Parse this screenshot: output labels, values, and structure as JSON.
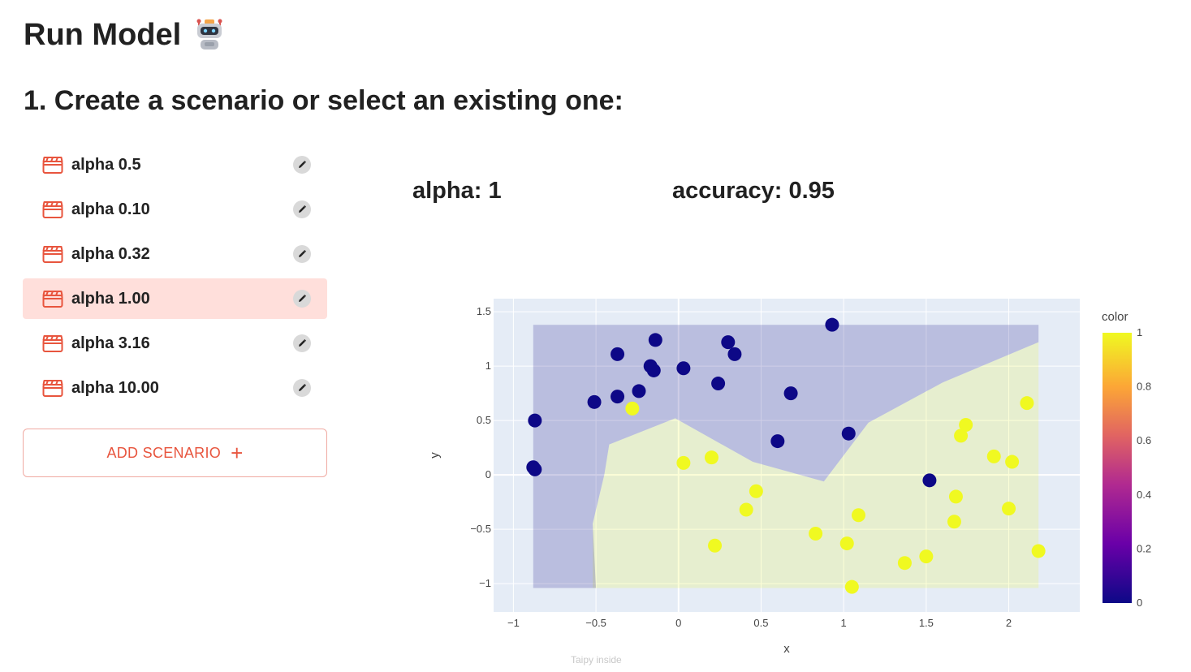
{
  "page": {
    "title": "Run Model",
    "title_icon": "robot-icon",
    "section_heading": "1. Create a scenario or select an existing one:",
    "footer_note": "Taipy inside"
  },
  "scenarios": {
    "items": [
      {
        "label": "alpha 0.5",
        "selected": false
      },
      {
        "label": "alpha 0.10",
        "selected": false
      },
      {
        "label": "alpha 0.32",
        "selected": false
      },
      {
        "label": "alpha 1.00",
        "selected": true
      },
      {
        "label": "alpha 3.16",
        "selected": false
      },
      {
        "label": "alpha 10.00",
        "selected": false
      }
    ],
    "item_icon": "clapperboard-icon",
    "edit_icon": "pencil-icon",
    "add_button_label": "ADD SCENARIO",
    "add_button_icon": "plus-icon"
  },
  "metrics": {
    "alpha_label": "alpha: 1",
    "accuracy_label": "accuracy: 0.95"
  },
  "colors": {
    "accent": "#e8553e",
    "selected_bg": "#ffdfdb",
    "class0": "#0d0887",
    "class1": "#f0f921",
    "plot_bg": "#e5ecf6"
  },
  "chart_data": {
    "type": "scatter",
    "xlabel": "x",
    "ylabel": "y",
    "xlim": [
      -1.12,
      2.43
    ],
    "ylim": [
      -1.26,
      1.62
    ],
    "xticks": [
      -1,
      -0.5,
      0,
      0.5,
      1,
      1.5,
      2
    ],
    "xtick_labels": [
      "−1",
      "−0.5",
      "0",
      "0.5",
      "1",
      "1.5",
      "2"
    ],
    "yticks": [
      -1,
      -0.5,
      0,
      0.5,
      1,
      1.5
    ],
    "ytick_labels": [
      "−1",
      "−0.5",
      "0",
      "0.5",
      "1",
      "1.5"
    ],
    "colorbar": {
      "title": "color",
      "ticks": [
        0,
        0.2,
        0.4,
        0.6,
        0.8,
        1
      ],
      "tick_labels": [
        "0",
        "0.2",
        "0.4",
        "0.6",
        "0.8",
        "1"
      ]
    },
    "decision_region_class0": [
      [
        -0.88,
        1.38
      ],
      [
        2.18,
        1.38
      ],
      [
        2.18,
        1.22
      ],
      [
        1.6,
        0.85
      ],
      [
        1.15,
        0.48
      ],
      [
        0.88,
        -0.06
      ],
      [
        0.45,
        0.12
      ],
      [
        -0.02,
        0.52
      ],
      [
        -0.42,
        0.28
      ],
      [
        -0.45,
        0.0
      ],
      [
        -0.52,
        -0.45
      ],
      [
        -0.5,
        -1.04
      ],
      [
        -0.88,
        -1.04
      ]
    ],
    "decision_region_class1": [
      [
        -0.52,
        -1.04
      ],
      [
        2.18,
        -1.04
      ],
      [
        2.18,
        1.22
      ],
      [
        1.6,
        0.85
      ],
      [
        1.15,
        0.48
      ],
      [
        0.88,
        -0.06
      ],
      [
        0.45,
        0.12
      ],
      [
        -0.02,
        0.52
      ],
      [
        -0.42,
        0.28
      ],
      [
        -0.45,
        0.0
      ],
      [
        -0.52,
        -0.45
      ]
    ],
    "series": [
      {
        "name": "0",
        "points": [
          [
            -0.87,
            0.5
          ],
          [
            -0.88,
            0.07
          ],
          [
            -0.87,
            0.05
          ],
          [
            -0.51,
            0.67
          ],
          [
            -0.37,
            0.72
          ],
          [
            -0.37,
            1.11
          ],
          [
            -0.24,
            0.77
          ],
          [
            -0.17,
            1.0
          ],
          [
            -0.15,
            0.96
          ],
          [
            -0.14,
            1.24
          ],
          [
            0.03,
            0.98
          ],
          [
            0.24,
            0.84
          ],
          [
            0.3,
            1.22
          ],
          [
            0.34,
            1.11
          ],
          [
            0.6,
            0.31
          ],
          [
            0.68,
            0.75
          ],
          [
            0.93,
            1.38
          ],
          [
            1.03,
            0.38
          ],
          [
            1.52,
            -0.05
          ]
        ]
      },
      {
        "name": "1",
        "points": [
          [
            -0.28,
            0.61
          ],
          [
            0.03,
            0.11
          ],
          [
            0.2,
            0.16
          ],
          [
            0.22,
            -0.65
          ],
          [
            0.41,
            -0.32
          ],
          [
            0.47,
            -0.15
          ],
          [
            0.83,
            -0.54
          ],
          [
            1.02,
            -0.63
          ],
          [
            1.05,
            -1.03
          ],
          [
            1.09,
            -0.37
          ],
          [
            1.37,
            -0.81
          ],
          [
            1.5,
            -0.75
          ],
          [
            1.67,
            -0.43
          ],
          [
            1.68,
            -0.2
          ],
          [
            1.71,
            0.36
          ],
          [
            1.74,
            0.46
          ],
          [
            1.91,
            0.17
          ],
          [
            2.0,
            -0.31
          ],
          [
            2.02,
            0.12
          ],
          [
            2.11,
            0.66
          ],
          [
            2.18,
            -0.7
          ]
        ]
      }
    ]
  }
}
